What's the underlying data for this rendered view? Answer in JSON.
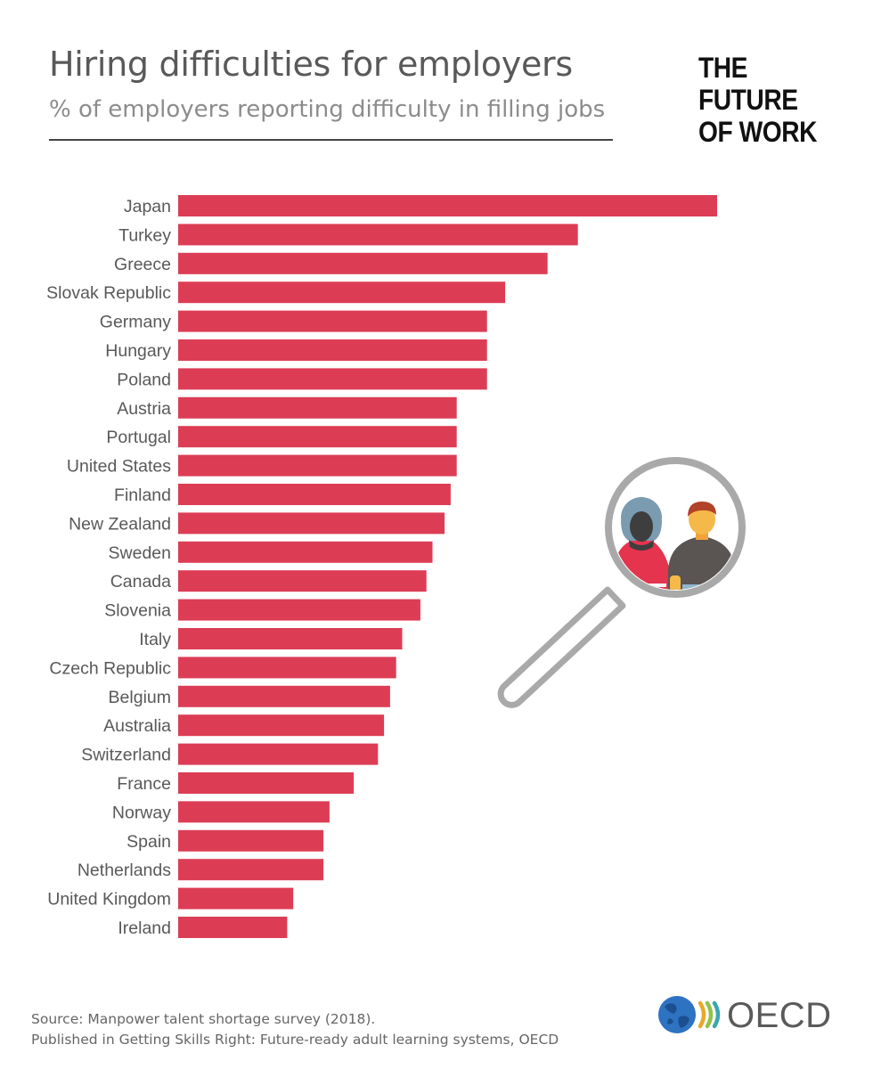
{
  "header": {
    "title": "Hiring difficulties for employers",
    "subtitle": "% of employers reporting difficulty in filling jobs"
  },
  "brand": {
    "line1": "THE",
    "line2": "FUTURE",
    "line3": "OF WORK"
  },
  "chart_data": {
    "type": "bar",
    "orientation": "horizontal",
    "title": "Hiring difficulties for employers",
    "subtitle": "% of employers reporting difficulty in filling jobs",
    "xlabel": "",
    "ylabel": "",
    "xlim": [
      0,
      89
    ],
    "grid": false,
    "legend": "none",
    "color": "#dc3d55",
    "categories": [
      "Japan",
      "Turkey",
      "Greece",
      "Slovak Republic",
      "Germany",
      "Hungary",
      "Poland",
      "Austria",
      "Portugal",
      "United States",
      "Finland",
      "New Zealand",
      "Sweden",
      "Canada",
      "Slovenia",
      "Italy",
      "Czech Republic",
      "Belgium",
      "Australia",
      "Switzerland",
      "France",
      "Norway",
      "Spain",
      "Netherlands",
      "United Kingdom",
      "Ireland"
    ],
    "values": [
      89,
      66,
      61,
      54,
      51,
      51,
      51,
      46,
      46,
      46,
      45,
      44,
      42,
      41,
      40,
      37,
      36,
      35,
      34,
      33,
      29,
      25,
      24,
      24,
      19,
      18
    ]
  },
  "footer": {
    "source_line1": "Source: Manpower talent shortage survey (2018).",
    "source_line2": "Published in Getting Skills Right: Future-ready adult learning systems, OECD",
    "logo_text": "OECD"
  },
  "colors": {
    "bar": "#dc3d55",
    "title": "#595959",
    "subtitle": "#8c8c8c"
  }
}
